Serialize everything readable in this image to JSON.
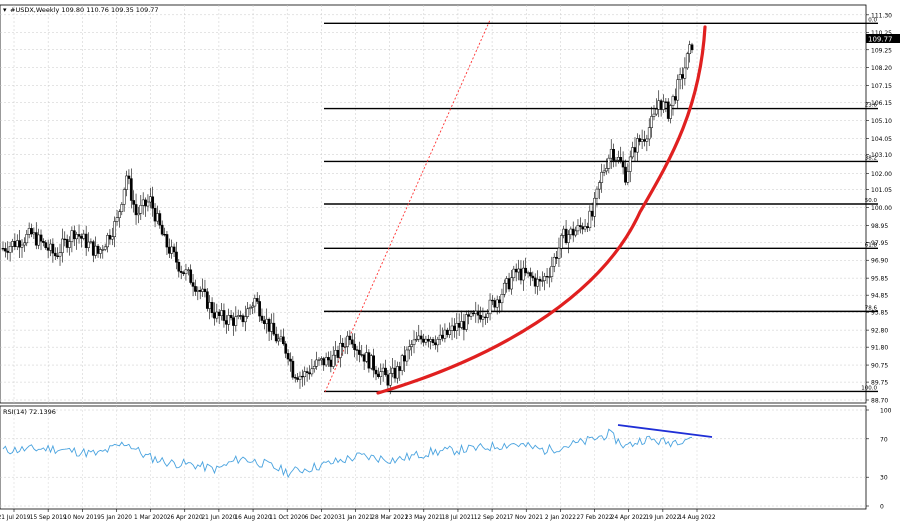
{
  "chart_data": [
    {
      "type": "candlestick",
      "title": "#USDX,Weekly  109.80 110.76 109.35 109.77",
      "last_price_badge": "109.77",
      "ylim": [
        88.7,
        111.7
      ],
      "price_ticks": [
        "111.30",
        "110.25",
        "109.25",
        "108.20",
        "107.15",
        "106.15",
        "105.10",
        "104.05",
        "103.10",
        "102.00",
        "101.05",
        "100.00",
        "98.95",
        "97.95",
        "96.90",
        "95.85",
        "94.85",
        "93.85",
        "92.80",
        "91.80",
        "90.75",
        "89.75",
        "88.70"
      ],
      "date_ticks": [
        "21 Jul 2019",
        "15 Sep 2019",
        "10 Nov 2019",
        "5 Jan 2020",
        "1 Mar 2020",
        "26 Apr 2020",
        "21 Jun 2020",
        "16 Aug 2020",
        "11 Oct 2020",
        "6 Dec 2020",
        "31 Jan 2021",
        "28 Mar 2021",
        "23 May 2021",
        "18 Jul 2021",
        "12 Sep 2021",
        "7 Nov 2021",
        "2 Jan 2022",
        "27 Feb 2022",
        "24 Apr 2022",
        "19 Jun 2022",
        "14 Aug 2022"
      ],
      "fibonacci_levels": [
        {
          "label": "0.0",
          "price": 110.8
        },
        {
          "label": "23.6",
          "price": 105.8
        },
        {
          "label": "38.2",
          "price": 102.7
        },
        {
          "label": "50.0",
          "price": 100.2
        },
        {
          "label": "61.8",
          "price": 97.6
        },
        {
          "label": "78.6",
          "price": 93.9
        },
        {
          "label": "100.0",
          "price": 89.2
        }
      ],
      "annotation_colors": {
        "fib": "#000000",
        "trend_dotted": "#ff3030",
        "curve": "#e02020",
        "rsi_line": "#4aa3df",
        "divergence": "#1f2fd6"
      }
    },
    {
      "type": "line",
      "title": "RSI(14) 72.1396",
      "ylim": [
        0,
        100
      ],
      "y_ticks": [
        "100",
        "70",
        "30",
        "0"
      ]
    }
  ]
}
